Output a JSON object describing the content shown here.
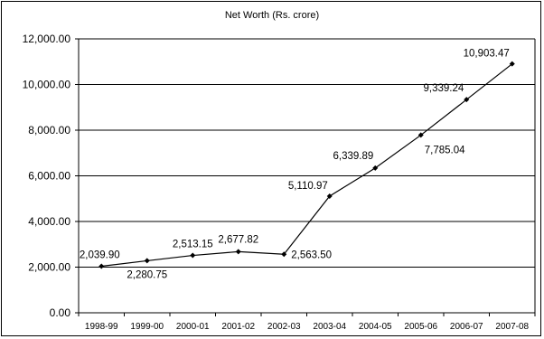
{
  "chart_data": {
    "type": "line",
    "title": "Net Worth (Rs. crore)",
    "xlabel": "",
    "ylabel": "",
    "categories": [
      "1998-99",
      "1999-00",
      "2000-01",
      "2001-02",
      "2002-03",
      "2003-04",
      "2004-05",
      "2005-06",
      "2006-07",
      "2007-08"
    ],
    "values": [
      2039.9,
      2280.75,
      2513.15,
      2677.82,
      2563.5,
      5110.97,
      6339.89,
      7785.04,
      9339.24,
      10903.47
    ],
    "data_labels": [
      "2,039.90",
      "2,280.75",
      "2,513.15",
      "2,677.82",
      "2,563.50",
      "5,110.97",
      "6,339.89",
      "7,785.04",
      "9,339.24",
      "10,903.47"
    ],
    "ylim": [
      0,
      12000
    ],
    "yticks": [
      0,
      2000,
      4000,
      6000,
      8000,
      10000,
      12000
    ],
    "ytick_labels": [
      "0.00",
      "2,000.00",
      "4,000.00",
      "6,000.00",
      "8,000.00",
      "10,000.00",
      "12,000.00"
    ],
    "grid": true,
    "legend": "none",
    "colors": {
      "line": "#000000",
      "grid": "#000000",
      "background": "#ffffff"
    }
  }
}
